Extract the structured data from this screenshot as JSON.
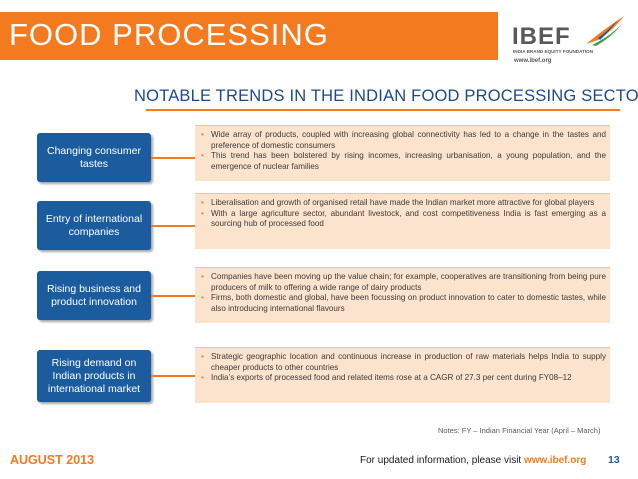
{
  "header": {
    "title": "FOOD PROCESSING",
    "logo": {
      "name": "IBEF",
      "tagline": "INDIA BRAND EQUITY FOUNDATION",
      "url": "www.ibef.org"
    }
  },
  "section_title": "NOTABLE TRENDS IN THE INDIAN FOOD PROCESSING SECTOR",
  "trends": [
    {
      "label": "Changing consumer tastes",
      "bullets": [
        "Wide array of products, coupled with increasing global connectivity has led to a change in the tastes and preference of domestic consumers",
        "This trend has been bolstered by rising incomes, increasing urbanisation, a young population, and the emergence of nuclear families"
      ]
    },
    {
      "label": "Entry of international companies",
      "bullets": [
        "Liberalisation and growth of organised retail have made the Indian market more attractive for global players",
        "With a large agriculture sector, abundant livestock, and cost competitiveness India is fast emerging as a sourcing hub of processed food"
      ]
    },
    {
      "label": "Rising business and product innovation",
      "bullets": [
        "Companies have been moving up the value chain; for example, cooperatives are transitioning from being pure producers of milk to offering a wide range of dairy products",
        "Firms, both domestic and global, have been focussing on product innovation to cater to domestic tastes, while also introducing international flavours"
      ]
    },
    {
      "label": "Rising demand on Indian products in international market",
      "bullets": [
        "Strategic geographic location and continuous increase in production of raw materials helps India to supply cheaper products to other countries",
        "India’s exports of processed food and related items rose at a CAGR of 27.3 per cent during FY08–12"
      ]
    }
  ],
  "notes": "Notes: FY – Indian Financial Year (April – March)",
  "footer": {
    "date": "AUGUST 2013",
    "info_text": "For updated information, please visit",
    "info_link": "www.ibef.org",
    "page_number": "13"
  },
  "colors": {
    "accent_orange": "#f47a20",
    "label_blue": "#1b5c9e",
    "text_box_fill": "#fbe3cd"
  }
}
